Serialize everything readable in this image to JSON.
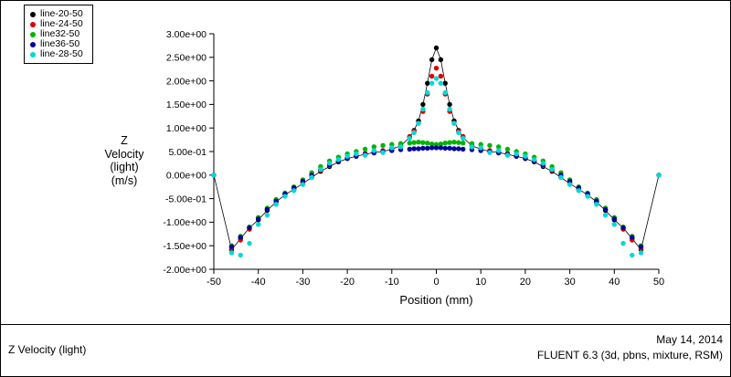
{
  "legend": {
    "items": [
      {
        "label": "line-20-50",
        "color": "#000000"
      },
      {
        "label": "line-24-50",
        "color": "#dd0000"
      },
      {
        "label": "line32-50",
        "color": "#00b400"
      },
      {
        "label": "line36-50",
        "color": "#000099"
      },
      {
        "label": "line-28-50",
        "color": "#00d9d9"
      }
    ]
  },
  "axis": {
    "y_label_lines": [
      "Z",
      "Velocity",
      "(light)",
      "(m/s)"
    ]
  },
  "footer": {
    "left": "Z Velocity (light)",
    "date": "May 14, 2014",
    "solver": "FLUENT 6.3 (3d, pbns, mixture, RSM)"
  },
  "chart_data": {
    "type": "scatter",
    "title": "",
    "xlabel": "Position (mm)",
    "ylabel": "Z Velocity (light) (m/s)",
    "xlim": [
      -50,
      50
    ],
    "ylim": [
      -2.0,
      3.0
    ],
    "grid": false,
    "legend_position": "top-left",
    "x_ticks": [
      {
        "value": -50,
        "label": "-50"
      },
      {
        "value": -40,
        "label": "-40"
      },
      {
        "value": -30,
        "label": "-30"
      },
      {
        "value": -20,
        "label": "-20"
      },
      {
        "value": -10,
        "label": "-10"
      },
      {
        "value": 0,
        "label": "0"
      },
      {
        "value": 10,
        "label": "10"
      },
      {
        "value": 20,
        "label": "20"
      },
      {
        "value": 30,
        "label": "30"
      },
      {
        "value": 40,
        "label": "40"
      },
      {
        "value": 50,
        "label": "50"
      }
    ],
    "y_ticks": [
      {
        "value": 3.0,
        "label": "3.00e+00"
      },
      {
        "value": 2.5,
        "label": "2.50e+00"
      },
      {
        "value": 2.0,
        "label": "2.00e+00"
      },
      {
        "value": 1.5,
        "label": "1.50e+00"
      },
      {
        "value": 1.0,
        "label": "1.00e+00"
      },
      {
        "value": 0.5,
        "label": "5.00e-01"
      },
      {
        "value": 0.0,
        "label": "0.00e+00"
      },
      {
        "value": -0.5,
        "label": "-5.00e-01"
      },
      {
        "value": -1.0,
        "label": "-1.00e+00"
      },
      {
        "value": -1.5,
        "label": "-1.50e+00"
      },
      {
        "value": -2.0,
        "label": "-2.00e+00"
      }
    ],
    "series": [
      {
        "name": "line-20-50",
        "color": "#000000",
        "line": true,
        "peak": 2.7,
        "x": [
          -50,
          -46,
          -44,
          -42,
          -40,
          -38,
          -36,
          -34,
          -32,
          -30,
          -28,
          -26,
          -24,
          -22,
          -20,
          -18,
          -16,
          -14,
          -12,
          -10,
          -8,
          -6,
          -5,
          -4,
          -3,
          -2,
          -1,
          0,
          1,
          2,
          3,
          4,
          5,
          6,
          8,
          10,
          12,
          14,
          16,
          18,
          20,
          22,
          24,
          26,
          28,
          30,
          32,
          34,
          36,
          38,
          40,
          42,
          44,
          46,
          50
        ],
        "y": [
          0.0,
          -1.58,
          -1.35,
          -1.12,
          -0.95,
          -0.75,
          -0.57,
          -0.42,
          -0.3,
          -0.18,
          -0.05,
          0.08,
          0.18,
          0.28,
          0.35,
          0.4,
          0.44,
          0.48,
          0.5,
          0.55,
          0.62,
          0.8,
          0.95,
          1.15,
          1.5,
          1.95,
          2.45,
          2.7,
          2.45,
          1.95,
          1.5,
          1.15,
          0.95,
          0.8,
          0.62,
          0.55,
          0.5,
          0.48,
          0.44,
          0.4,
          0.35,
          0.28,
          0.18,
          0.08,
          -0.05,
          -0.18,
          -0.3,
          -0.42,
          -0.57,
          -0.75,
          -0.95,
          -1.12,
          -1.35,
          -1.58,
          0.0
        ]
      },
      {
        "name": "line-24-50",
        "color": "#dd0000",
        "line": false,
        "peak": 2.27,
        "x": [
          -50,
          -46,
          -44,
          -42,
          -40,
          -38,
          -36,
          -34,
          -32,
          -30,
          -28,
          -26,
          -24,
          -22,
          -20,
          -18,
          -16,
          -14,
          -12,
          -10,
          -8,
          -6,
          -5,
          -4,
          -3,
          -2,
          -1,
          0,
          1,
          2,
          3,
          4,
          5,
          6,
          8,
          10,
          12,
          14,
          16,
          18,
          20,
          22,
          24,
          26,
          28,
          30,
          32,
          34,
          36,
          38,
          40,
          42,
          44,
          46,
          50
        ],
        "y": [
          0.0,
          -1.55,
          -1.38,
          -1.15,
          -0.92,
          -0.72,
          -0.55,
          -0.4,
          -0.28,
          -0.15,
          -0.03,
          0.1,
          0.2,
          0.3,
          0.37,
          0.42,
          0.46,
          0.5,
          0.52,
          0.57,
          0.65,
          0.82,
          0.93,
          1.1,
          1.35,
          1.72,
          2.1,
          2.27,
          2.1,
          1.72,
          1.35,
          1.1,
          0.93,
          0.82,
          0.65,
          0.57,
          0.52,
          0.5,
          0.46,
          0.42,
          0.37,
          0.3,
          0.2,
          0.1,
          -0.03,
          -0.15,
          -0.28,
          -0.4,
          -0.55,
          -0.72,
          -0.92,
          -1.15,
          -1.38,
          -1.55,
          0.0
        ]
      },
      {
        "name": "line32-50",
        "color": "#00b400",
        "line": false,
        "peak": 0.7,
        "x": [
          -46,
          -44,
          -42,
          -40,
          -38,
          -36,
          -34,
          -32,
          -30,
          -28,
          -26,
          -24,
          -22,
          -20,
          -18,
          -16,
          -14,
          -12,
          -10,
          -8,
          -6,
          -5,
          -4,
          -3,
          -2,
          -1,
          0,
          1,
          2,
          3,
          4,
          5,
          6,
          8,
          10,
          12,
          14,
          16,
          18,
          20,
          22,
          24,
          26,
          28,
          30,
          32,
          34,
          36,
          38,
          40,
          42,
          44,
          46
        ],
        "y": [
          -1.5,
          -1.3,
          -1.1,
          -0.9,
          -0.7,
          -0.52,
          -0.38,
          -0.25,
          -0.1,
          0.05,
          0.18,
          0.3,
          0.38,
          0.45,
          0.5,
          0.55,
          0.6,
          0.63,
          0.65,
          0.67,
          0.68,
          0.69,
          0.7,
          0.69,
          0.68,
          0.66,
          0.65,
          0.66,
          0.68,
          0.69,
          0.7,
          0.69,
          0.68,
          0.67,
          0.65,
          0.63,
          0.6,
          0.55,
          0.5,
          0.45,
          0.38,
          0.3,
          0.18,
          0.05,
          -0.1,
          -0.25,
          -0.38,
          -0.52,
          -0.7,
          -0.9,
          -1.1,
          -1.3,
          -1.5
        ]
      },
      {
        "name": "line36-50",
        "color": "#000099",
        "line": false,
        "peak": 0.58,
        "x": [
          -46,
          -44,
          -42,
          -40,
          -38,
          -36,
          -34,
          -32,
          -30,
          -28,
          -26,
          -24,
          -22,
          -20,
          -18,
          -16,
          -14,
          -12,
          -10,
          -8,
          -6,
          -5,
          -4,
          -3,
          -2,
          -1,
          0,
          1,
          2,
          3,
          4,
          5,
          6,
          8,
          10,
          12,
          14,
          16,
          18,
          20,
          22,
          24,
          26,
          28,
          30,
          32,
          34,
          36,
          38,
          40,
          42,
          44,
          46
        ],
        "y": [
          -1.52,
          -1.32,
          -1.12,
          -0.93,
          -0.73,
          -0.55,
          -0.4,
          -0.27,
          -0.13,
          0.0,
          0.12,
          0.22,
          0.3,
          0.36,
          0.4,
          0.44,
          0.47,
          0.5,
          0.52,
          0.54,
          0.55,
          0.56,
          0.56,
          0.57,
          0.57,
          0.58,
          0.58,
          0.58,
          0.57,
          0.57,
          0.56,
          0.56,
          0.55,
          0.54,
          0.52,
          0.5,
          0.47,
          0.44,
          0.4,
          0.36,
          0.3,
          0.22,
          0.12,
          0.0,
          -0.13,
          -0.27,
          -0.4,
          -0.55,
          -0.73,
          -0.93,
          -1.12,
          -1.32,
          -1.52
        ]
      },
      {
        "name": "line-28-50",
        "color": "#00d9d9",
        "line": false,
        "peak": 2.05,
        "x": [
          -50,
          -46,
          -44,
          -42,
          -40,
          -38,
          -36,
          -34,
          -32,
          -30,
          -28,
          -26,
          -24,
          -22,
          -20,
          -18,
          -16,
          -14,
          -12,
          -10,
          -8,
          -6,
          -5,
          -4,
          -3,
          -2,
          -1,
          0,
          1,
          2,
          3,
          4,
          5,
          6,
          8,
          10,
          12,
          14,
          16,
          18,
          20,
          22,
          24,
          26,
          28,
          30,
          32,
          34,
          36,
          38,
          40,
          42,
          44,
          46,
          50
        ],
        "y": [
          0.0,
          -1.65,
          -1.7,
          -1.45,
          -1.05,
          -0.85,
          -0.62,
          -0.45,
          -0.33,
          -0.2,
          -0.05,
          0.12,
          0.25,
          0.33,
          0.4,
          0.45,
          0.42,
          0.52,
          0.48,
          0.58,
          0.6,
          0.78,
          0.9,
          1.1,
          1.4,
          1.75,
          1.95,
          2.05,
          1.95,
          1.75,
          1.4,
          1.1,
          0.9,
          0.78,
          0.6,
          0.58,
          0.48,
          0.52,
          0.42,
          0.45,
          0.4,
          0.33,
          0.25,
          0.12,
          -0.05,
          -0.2,
          -0.33,
          -0.45,
          -0.62,
          -0.85,
          -1.05,
          -1.45,
          -1.7,
          -1.65,
          0.0
        ]
      }
    ]
  }
}
